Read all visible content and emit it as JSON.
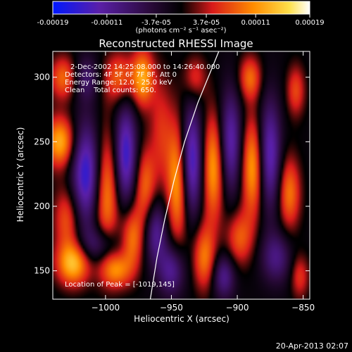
{
  "chart_data": {
    "type": "heatmap",
    "title": "Reconstructed RHESSI Image",
    "xlabel": "Heliocentric X (arcsec)",
    "ylabel": "Heliocentric Y (arcsec)",
    "xlim": [
      -1040,
      -845
    ],
    "ylim": [
      128,
      320
    ],
    "x_ticks": [
      -1000,
      -950,
      -900,
      -850
    ],
    "y_ticks": [
      150,
      200,
      250,
      300
    ],
    "colorbar": {
      "ticks": [
        "-0.00019",
        "-0.00011",
        "-3.7e-05",
        "3.7e-05",
        "0.00011",
        "0.00019"
      ],
      "tick_values": [
        -0.00019,
        -0.00011,
        -3.7e-05,
        3.7e-05,
        0.00011,
        0.00019
      ],
      "unit_label": "(photons cm⁻² s⁻¹ asec⁻²)",
      "range": [
        -0.00019,
        0.00019
      ],
      "colors": [
        "#0018ff",
        "#5a1fa8",
        "#2a0a3a",
        "#000000",
        "#d81a1a",
        "#ff8c00",
        "#ffe04a",
        "#ffffff"
      ]
    },
    "annotations": [
      "2-Dec-2002 14:25:08.000 to 14:26:40.000",
      "Detectors: 4F 5F 6F 7F 8F, Att 0",
      "Energy Range: 12.0 - 25.0 keV",
      "Clean    Total counts: 650.",
      "Location of Peak = [-1019,145]"
    ],
    "peak": {
      "x": -1019,
      "y": 145
    },
    "limb": [
      [
        -966,
        128
      ],
      [
        -961,
        160
      ],
      [
        -955,
        190
      ],
      [
        -948,
        220
      ],
      [
        -940,
        250
      ],
      [
        -930,
        280
      ],
      [
        -920,
        305
      ],
      [
        -914,
        320
      ]
    ],
    "blobs": [
      {
        "x": -1035,
        "y": 250,
        "sx": 8,
        "sy": 14,
        "v": 0.8
      },
      {
        "x": -1033,
        "y": 300,
        "sx": 7,
        "sy": 12,
        "v": 0.55
      },
      {
        "x": -1030,
        "y": 190,
        "sx": 7,
        "sy": 18,
        "v": 0.5
      },
      {
        "x": -1025,
        "y": 155,
        "sx": 9,
        "sy": 12,
        "v": 0.85
      },
      {
        "x": -1015,
        "y": 225,
        "sx": 8,
        "sy": 28,
        "v": -0.9
      },
      {
        "x": -1015,
        "y": 300,
        "sx": 6,
        "sy": 12,
        "v": -0.4
      },
      {
        "x": -1005,
        "y": 170,
        "sx": 10,
        "sy": 10,
        "v": -0.5
      },
      {
        "x": -1000,
        "y": 210,
        "sx": 7,
        "sy": 35,
        "v": 0.7
      },
      {
        "x": -992,
        "y": 150,
        "sx": 8,
        "sy": 10,
        "v": 0.6
      },
      {
        "x": -990,
        "y": 300,
        "sx": 8,
        "sy": 14,
        "v": 0.55
      },
      {
        "x": -985,
        "y": 240,
        "sx": 6,
        "sy": 28,
        "v": -0.85
      },
      {
        "x": -980,
        "y": 175,
        "sx": 6,
        "sy": 18,
        "v": 0.6
      },
      {
        "x": -972,
        "y": 300,
        "sx": 6,
        "sy": 16,
        "v": 0.75
      },
      {
        "x": -970,
        "y": 215,
        "sx": 6,
        "sy": 22,
        "v": 0.55
      },
      {
        "x": -962,
        "y": 180,
        "sx": 6,
        "sy": 18,
        "v": -0.6
      },
      {
        "x": -958,
        "y": 260,
        "sx": 6,
        "sy": 30,
        "v": 0.35
      },
      {
        "x": -950,
        "y": 150,
        "sx": 7,
        "sy": 14,
        "v": -0.6
      },
      {
        "x": -945,
        "y": 220,
        "sx": 6,
        "sy": 34,
        "v": 0.8
      },
      {
        "x": -935,
        "y": 235,
        "sx": 6,
        "sy": 30,
        "v": -0.9
      },
      {
        "x": -932,
        "y": 300,
        "sx": 6,
        "sy": 12,
        "v": 0.4
      },
      {
        "x": -925,
        "y": 160,
        "sx": 6,
        "sy": 18,
        "v": 0.6
      },
      {
        "x": -918,
        "y": 230,
        "sx": 6,
        "sy": 30,
        "v": 0.75
      },
      {
        "x": -910,
        "y": 145,
        "sx": 6,
        "sy": 12,
        "v": -0.55
      },
      {
        "x": -905,
        "y": 250,
        "sx": 6,
        "sy": 28,
        "v": -0.7
      },
      {
        "x": -898,
        "y": 175,
        "sx": 7,
        "sy": 15,
        "v": 0.5
      },
      {
        "x": -890,
        "y": 300,
        "sx": 6,
        "sy": 12,
        "v": 0.55
      },
      {
        "x": -888,
        "y": 230,
        "sx": 6,
        "sy": 28,
        "v": 0.75
      },
      {
        "x": -875,
        "y": 240,
        "sx": 6,
        "sy": 30,
        "v": -0.75
      },
      {
        "x": -870,
        "y": 160,
        "sx": 8,
        "sy": 14,
        "v": -0.5
      },
      {
        "x": -860,
        "y": 210,
        "sx": 6,
        "sy": 20,
        "v": 0.6
      },
      {
        "x": -855,
        "y": 290,
        "sx": 5,
        "sy": 14,
        "v": 0.45
      },
      {
        "x": -852,
        "y": 145,
        "sx": 5,
        "sy": 12,
        "v": 0.4
      }
    ]
  },
  "footer": {
    "timestamp": "20-Apr-2013 02:07"
  }
}
